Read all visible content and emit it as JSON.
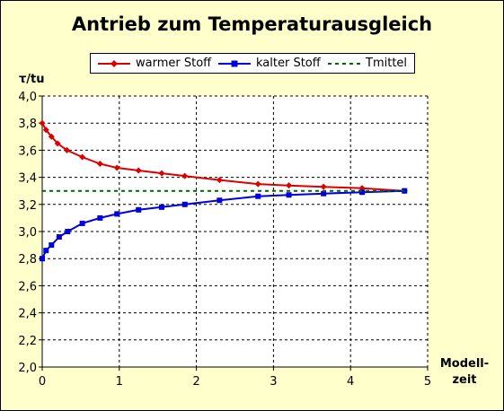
{
  "chart_data": {
    "type": "line",
    "title": "Antrieb zum Temperaturausgleich",
    "ylabel": "τ/tu",
    "xlabel_line1": "Modell-",
    "xlabel_line2": "zeit",
    "xlim": [
      0,
      5
    ],
    "ylim": [
      2.0,
      4.0
    ],
    "xticks": [
      0,
      1,
      2,
      3,
      4,
      5
    ],
    "xtick_labels": [
      "0",
      "1",
      "2",
      "3",
      "4",
      "5"
    ],
    "yticks": [
      2.0,
      2.2,
      2.4,
      2.6,
      2.8,
      3.0,
      3.2,
      3.4,
      3.6,
      3.8,
      4.0
    ],
    "ytick_labels": [
      "2,0",
      "2,2",
      "2,4",
      "2,6",
      "2,8",
      "3,0",
      "3,2",
      "3,4",
      "3,6",
      "3,8",
      "4,0"
    ],
    "grid": true,
    "legend_position": "top",
    "series": [
      {
        "name": "warmer Stoff",
        "color": "#dd0000",
        "marker": "diamond",
        "line": "solid",
        "x": [
          0,
          0.05,
          0.12,
          0.2,
          0.32,
          0.52,
          0.75,
          0.97,
          1.25,
          1.55,
          1.85,
          2.3,
          2.8,
          3.2,
          3.65,
          4.15,
          4.7
        ],
        "y": [
          3.8,
          3.75,
          3.7,
          3.65,
          3.6,
          3.55,
          3.5,
          3.47,
          3.45,
          3.43,
          3.41,
          3.38,
          3.35,
          3.34,
          3.33,
          3.32,
          3.3
        ]
      },
      {
        "name": "kalter Stoff",
        "color": "#0000dd",
        "marker": "square",
        "line": "solid",
        "x": [
          0,
          0.05,
          0.12,
          0.22,
          0.33,
          0.52,
          0.75,
          0.97,
          1.25,
          1.55,
          1.85,
          2.3,
          2.8,
          3.2,
          3.65,
          4.15,
          4.7
        ],
        "y": [
          2.8,
          2.86,
          2.9,
          2.96,
          3.0,
          3.06,
          3.1,
          3.13,
          3.16,
          3.18,
          3.2,
          3.23,
          3.26,
          3.27,
          3.28,
          3.29,
          3.3
        ]
      },
      {
        "name": "Tmittel",
        "color": "#006600",
        "marker": "none",
        "line": "dashed",
        "x": [
          0,
          4.7
        ],
        "y": [
          3.3,
          3.3
        ]
      }
    ]
  }
}
